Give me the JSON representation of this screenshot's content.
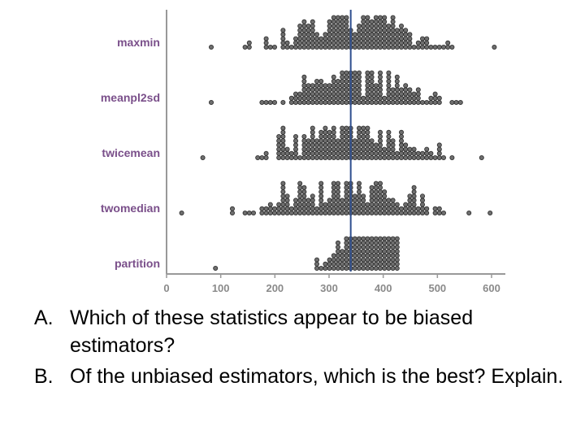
{
  "chart_data": {
    "type": "scatter",
    "subtype": "dot-plot",
    "categories": [
      "maxmin",
      "meanpl2sd",
      "twicemean",
      "twomedian",
      "partition"
    ],
    "xlim": [
      0,
      620
    ],
    "xticks": [
      0,
      100,
      200,
      300,
      400,
      500,
      600
    ],
    "xtick_labels": [
      "0",
      "100",
      "200",
      "300",
      "400",
      "500",
      "600"
    ],
    "reference_line_x": 340,
    "series": [
      {
        "category": "maxmin",
        "min": 80,
        "max": 605,
        "center": 345,
        "spread": 75,
        "n": 230,
        "clip_max": 610
      },
      {
        "category": "meanpl2sd",
        "min": 85,
        "max": 540,
        "center": 355,
        "spread": 70,
        "n": 200,
        "clip_max": 545
      },
      {
        "category": "twicemean",
        "min": 65,
        "max": 585,
        "center": 330,
        "spread": 80,
        "n": 220,
        "clip_max": 590
      },
      {
        "category": "twomedian",
        "min": 30,
        "max": 600,
        "center": 330,
        "spread": 90,
        "n": 220,
        "clip_max": 605
      },
      {
        "category": "partition",
        "min": 90,
        "max": 425,
        "center": 390,
        "spread": 45,
        "n": 240,
        "clip_max": 425
      }
    ],
    "colors": {
      "dot_fill": "#6e6e6e",
      "dot_stroke": "#2a2a2a",
      "reference_line": "#2f4f8f",
      "axis": "#999999"
    }
  },
  "questions": [
    {
      "letter": "A.",
      "text": "Which of these statistics appear to be biased estimators?"
    },
    {
      "letter": "B.",
      "text": "Of the unbiased estimators, which is the best? Explain."
    }
  ]
}
